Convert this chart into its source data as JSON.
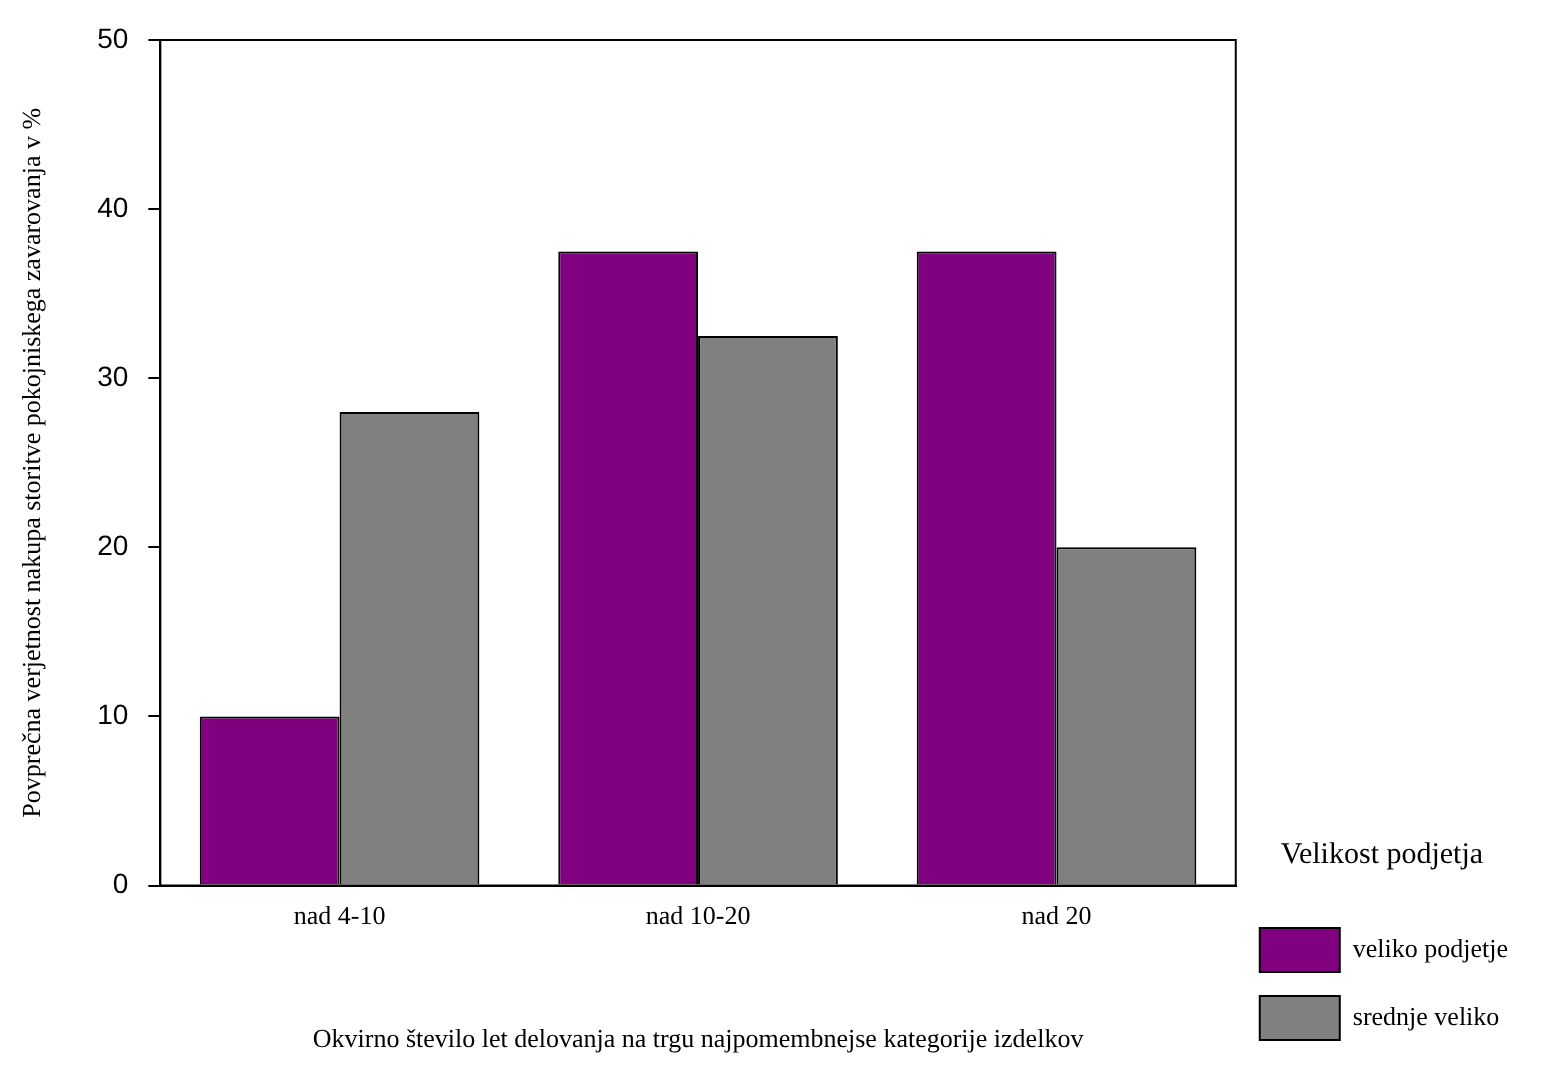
{
  "chart_data": {
    "type": "bar",
    "xlabel": "Okvirno število let delovanja na trgu najpomembnejse kategorije izdelkov",
    "ylabel": "Povprečna verjetnost nakupa storitve pokojniskega zavarovanja v %",
    "legend_title": "Velikost podjetja",
    "categories": [
      "nad 4-10",
      "nad 10-20",
      "nad 20"
    ],
    "series": [
      {
        "name": "veliko podjetje",
        "color": "#800080",
        "values": [
          10,
          37.5,
          37.5
        ]
      },
      {
        "name": "srednje veliko",
        "color": "#808080",
        "values": [
          28,
          32.5,
          20
        ]
      }
    ],
    "ylim": [
      0,
      50
    ],
    "yticks": [
      0,
      10,
      20,
      30,
      40,
      50
    ],
    "grid": false,
    "legend": "bottom right"
  }
}
